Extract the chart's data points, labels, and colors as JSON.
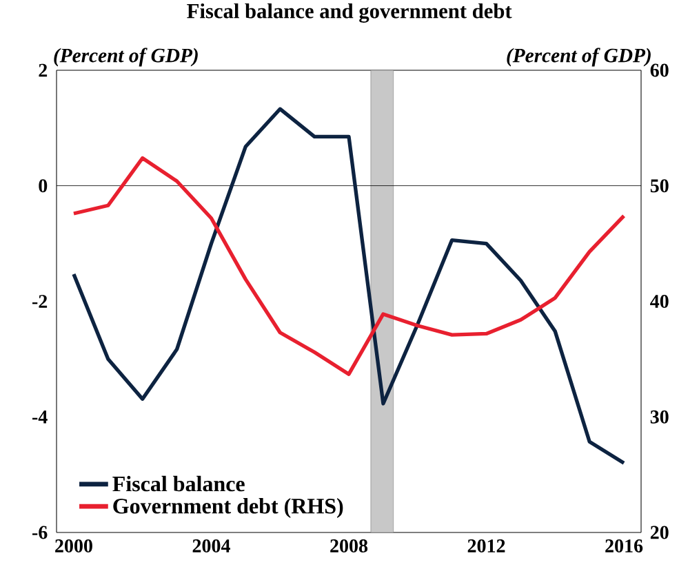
{
  "chart_data": {
    "type": "line",
    "title": "Fiscal balance and government debt",
    "ylabel": "(Percent of GDP)",
    "y2label": "(Percent of GDP)",
    "x": [
      2000,
      2001,
      2002,
      2003,
      2004,
      2005,
      2006,
      2007,
      2008,
      2009,
      2010,
      2011,
      2012,
      2013,
      2014,
      2015,
      2016
    ],
    "series": [
      {
        "name": "Fiscal balance",
        "color": "#0d2341",
        "values": [
          -1.53,
          -3.0,
          -3.69,
          -2.83,
          -1.0,
          0.68,
          1.33,
          0.85,
          0.85,
          -3.77,
          -2.4,
          -0.94,
          -1.0,
          -1.64,
          -2.52,
          -4.43,
          -4.8
        ]
      },
      {
        "name": "Government debt (RHS)",
        "color": "#e8202f",
        "axis": "y2",
        "values": [
          47.6,
          48.3,
          52.4,
          50.4,
          47.2,
          41.9,
          37.3,
          35.6,
          33.7,
          38.9,
          37.9,
          37.1,
          37.2,
          38.4,
          40.3,
          44.3,
          47.4
        ]
      }
    ],
    "xlim": [
      1999.5,
      2016.5
    ],
    "xticks": [
      2000,
      2004,
      2008,
      2012,
      2016
    ],
    "ylim": [
      -6,
      2
    ],
    "yticks": [
      -6,
      -4,
      -2,
      0,
      2
    ],
    "y2lim": [
      20,
      60
    ],
    "y2ticks": [
      20,
      30,
      40,
      50,
      60
    ],
    "ref_lines": [
      {
        "axis": "y",
        "value": 0,
        "color": "#000000"
      }
    ],
    "bands": [
      {
        "axis": "x",
        "from": 2008.64,
        "to": 2009.3,
        "color": "#c8c8c8"
      }
    ],
    "legend": "bottom left",
    "line_style": "solid"
  }
}
